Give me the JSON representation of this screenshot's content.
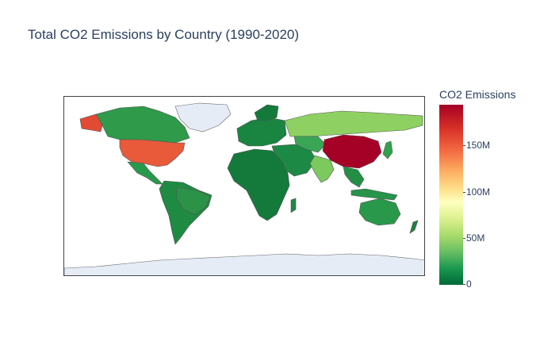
{
  "title": "Total CO2 Emissions by Country (1990-2020)",
  "colorbar": {
    "title": "CO2 Emissions",
    "ticks": [
      "150M",
      "100M",
      "50M",
      "0"
    ],
    "colors": [
      "#a50026",
      "#d73027",
      "#f46d43",
      "#fdae61",
      "#fee08b",
      "#ffffbf",
      "#d9ef8b",
      "#a6d96a",
      "#66bd63",
      "#1a9850",
      "#006837"
    ]
  },
  "map": {
    "type": "choropleth",
    "projection": "equirectangular",
    "colorscale": "RdYlGn reversed",
    "range": [
      0,
      190000000
    ],
    "no_data_color": "#e5ecf6"
  }
}
